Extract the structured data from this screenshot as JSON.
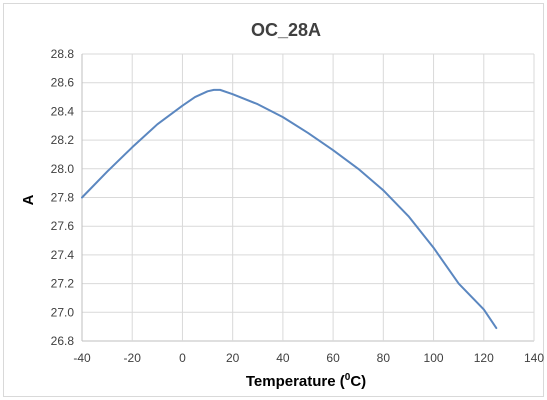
{
  "chart_data": {
    "type": "line",
    "title": "OC_28A",
    "xlabel": "Temperature (",
    "xlabel_sup": "0",
    "xlabel_suffix": "C)",
    "ylabel": "A",
    "xlim": [
      -40,
      140
    ],
    "ylim": [
      26.8,
      28.8
    ],
    "xticks": [
      -40,
      -20,
      0,
      20,
      40,
      60,
      80,
      100,
      120,
      140
    ],
    "yticks": [
      26.8,
      27.0,
      27.2,
      27.4,
      27.6,
      27.8,
      28.0,
      28.2,
      28.4,
      28.6,
      28.8
    ],
    "grid": true,
    "legend": "none",
    "series": [
      {
        "color": "#5b87c0",
        "x": [
          -40,
          -30,
          -20,
          -10,
          0,
          5,
          10,
          12.5,
          15,
          20,
          30,
          40,
          50,
          60,
          70,
          80,
          90,
          100,
          110,
          120,
          125
        ],
        "y": [
          27.8,
          27.98,
          28.15,
          28.31,
          28.44,
          28.5,
          28.54,
          28.55,
          28.55,
          28.52,
          28.45,
          28.36,
          28.25,
          28.13,
          28.0,
          27.85,
          27.67,
          27.45,
          27.2,
          27.02,
          26.89
        ]
      }
    ]
  }
}
